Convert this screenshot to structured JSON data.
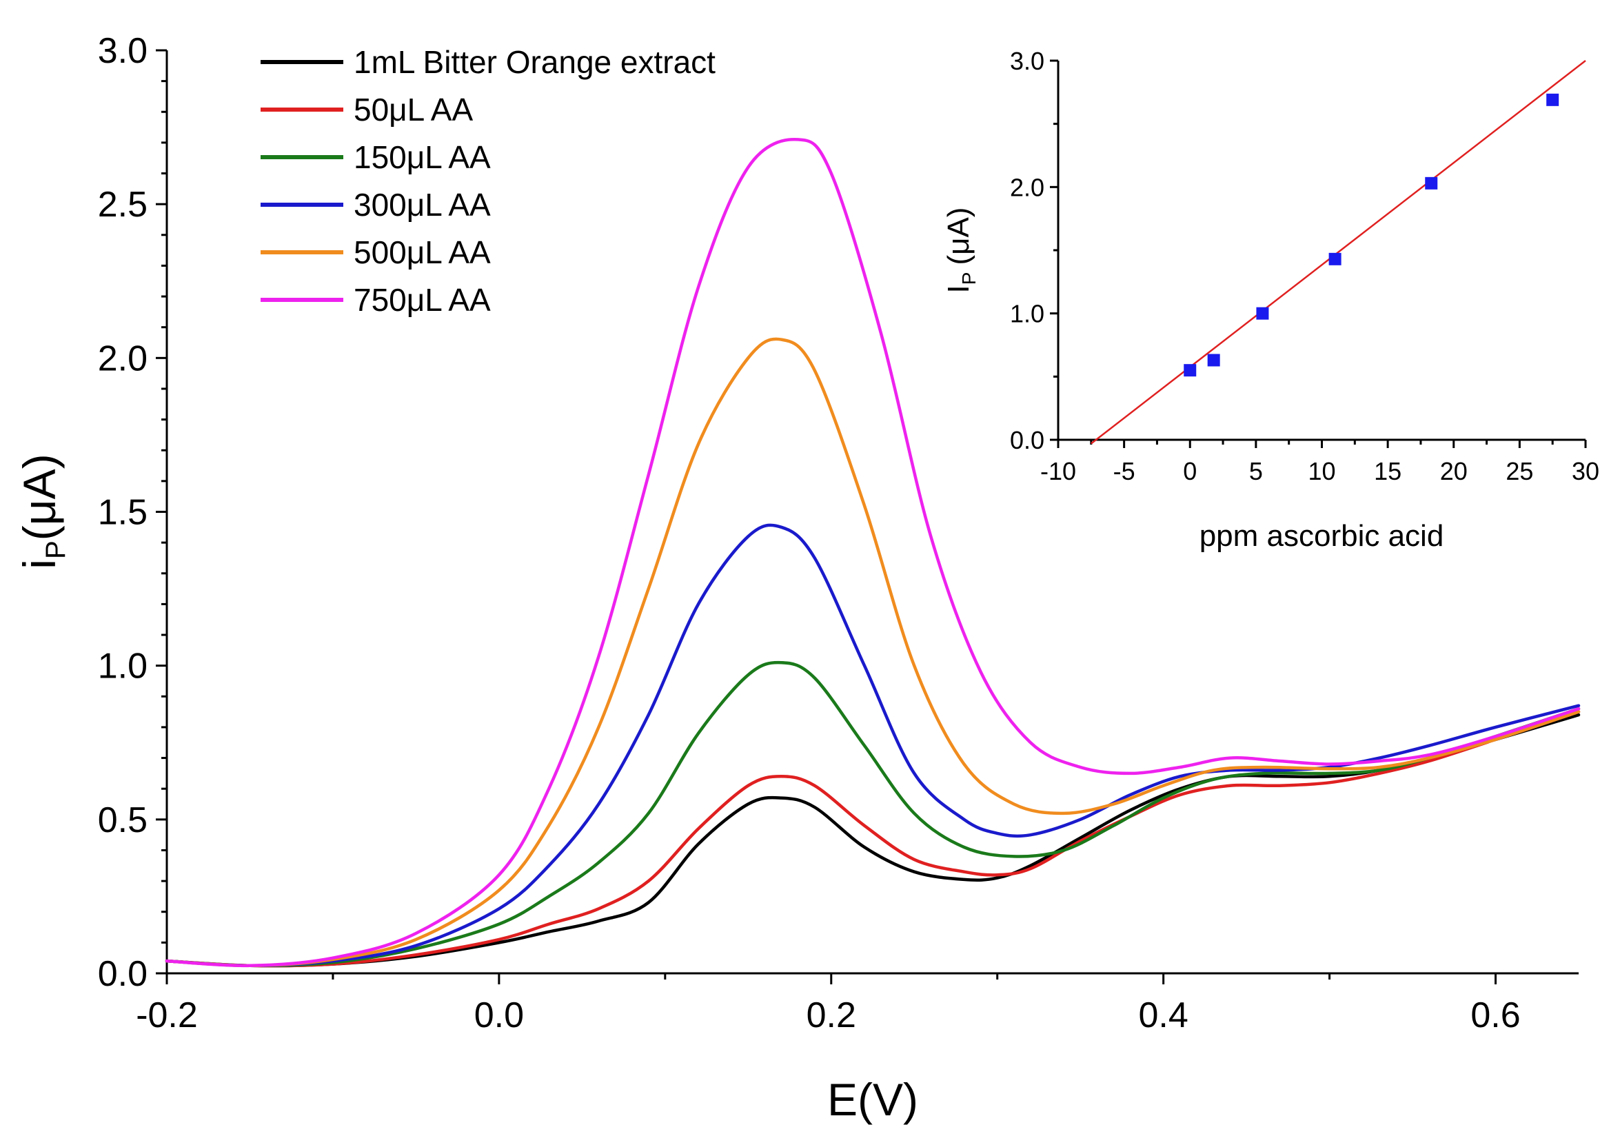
{
  "chart_data": [
    {
      "type": "line",
      "title": "",
      "xlabel": "E(V)",
      "ylabel": "i",
      "ylabel_sub": "P",
      "ylabel_unit": "(μA)",
      "xlim": [
        -0.2,
        0.65
      ],
      "ylim": [
        0.0,
        3.0
      ],
      "x_ticks": [
        -0.2,
        0.0,
        0.2,
        0.4,
        0.6
      ],
      "x_tick_labels": [
        "-0.2",
        "0.0",
        "0.2",
        "0.4",
        "0.6"
      ],
      "y_ticks": [
        0.0,
        0.5,
        1.0,
        1.5,
        2.0,
        2.5,
        3.0
      ],
      "y_tick_labels": [
        "0.0",
        "0.5",
        "1.0",
        "1.5",
        "2.0",
        "2.5",
        "3.0"
      ],
      "grid": false,
      "legend_position": "top-left",
      "series": [
        {
          "name": "1mL Bitter Orange extract",
          "color": "#000000",
          "x": [
            -0.2,
            -0.15,
            -0.1,
            -0.05,
            0.0,
            0.03,
            0.06,
            0.09,
            0.12,
            0.15,
            0.17,
            0.19,
            0.22,
            0.25,
            0.28,
            0.3,
            0.32,
            0.35,
            0.38,
            0.41,
            0.44,
            0.47,
            0.5,
            0.53,
            0.56,
            0.6,
            0.65
          ],
          "y": [
            0.04,
            0.025,
            0.03,
            0.055,
            0.1,
            0.135,
            0.17,
            0.23,
            0.42,
            0.55,
            0.57,
            0.54,
            0.41,
            0.33,
            0.305,
            0.31,
            0.35,
            0.44,
            0.53,
            0.6,
            0.64,
            0.64,
            0.64,
            0.66,
            0.7,
            0.76,
            0.84
          ]
        },
        {
          "name": "50μL AA",
          "color": "#e02020",
          "x": [
            -0.2,
            -0.15,
            -0.1,
            -0.05,
            0.0,
            0.03,
            0.06,
            0.09,
            0.12,
            0.15,
            0.17,
            0.19,
            0.22,
            0.25,
            0.28,
            0.3,
            0.32,
            0.35,
            0.38,
            0.41,
            0.44,
            0.47,
            0.5,
            0.53,
            0.56,
            0.6,
            0.65
          ],
          "y": [
            0.04,
            0.025,
            0.03,
            0.06,
            0.11,
            0.16,
            0.21,
            0.3,
            0.47,
            0.61,
            0.64,
            0.61,
            0.48,
            0.37,
            0.33,
            0.32,
            0.34,
            0.43,
            0.51,
            0.58,
            0.61,
            0.61,
            0.62,
            0.65,
            0.69,
            0.76,
            0.85
          ]
        },
        {
          "name": "150μL AA",
          "color": "#1a7a1a",
          "x": [
            -0.2,
            -0.15,
            -0.1,
            -0.05,
            0.0,
            0.03,
            0.06,
            0.09,
            0.12,
            0.15,
            0.17,
            0.19,
            0.22,
            0.25,
            0.28,
            0.31,
            0.34,
            0.37,
            0.4,
            0.43,
            0.46,
            0.5,
            0.53,
            0.56,
            0.6,
            0.65
          ],
          "y": [
            0.04,
            0.025,
            0.035,
            0.08,
            0.16,
            0.25,
            0.36,
            0.52,
            0.78,
            0.97,
            1.01,
            0.96,
            0.74,
            0.52,
            0.41,
            0.38,
            0.4,
            0.48,
            0.57,
            0.63,
            0.65,
            0.65,
            0.66,
            0.7,
            0.77,
            0.86
          ]
        },
        {
          "name": "300μL AA",
          "color": "#1a1acc",
          "x": [
            -0.2,
            -0.15,
            -0.1,
            -0.05,
            0.0,
            0.03,
            0.06,
            0.09,
            0.12,
            0.15,
            0.17,
            0.19,
            0.22,
            0.25,
            0.28,
            0.3,
            0.32,
            0.35,
            0.38,
            0.41,
            0.44,
            0.47,
            0.5,
            0.53,
            0.56,
            0.6,
            0.65
          ],
          "y": [
            0.04,
            0.025,
            0.04,
            0.09,
            0.21,
            0.35,
            0.55,
            0.84,
            1.2,
            1.42,
            1.45,
            1.35,
            1.0,
            0.65,
            0.5,
            0.455,
            0.45,
            0.5,
            0.58,
            0.64,
            0.66,
            0.66,
            0.67,
            0.7,
            0.74,
            0.8,
            0.87
          ]
        },
        {
          "name": "500μL AA",
          "color": "#f08c1e",
          "x": [
            -0.2,
            -0.15,
            -0.1,
            -0.05,
            0.0,
            0.03,
            0.06,
            0.09,
            0.12,
            0.15,
            0.17,
            0.19,
            0.22,
            0.25,
            0.28,
            0.31,
            0.34,
            0.37,
            0.4,
            0.43,
            0.46,
            0.5,
            0.53,
            0.56,
            0.6,
            0.65
          ],
          "y": [
            0.04,
            0.025,
            0.045,
            0.11,
            0.27,
            0.48,
            0.8,
            1.25,
            1.72,
            2.0,
            2.06,
            1.96,
            1.52,
            1.0,
            0.68,
            0.55,
            0.52,
            0.55,
            0.61,
            0.66,
            0.67,
            0.665,
            0.67,
            0.7,
            0.76,
            0.85
          ]
        },
        {
          "name": "750μL AA",
          "color": "#ee22ee",
          "x": [
            -0.2,
            -0.15,
            -0.1,
            -0.05,
            0.0,
            0.03,
            0.06,
            0.09,
            0.12,
            0.15,
            0.18,
            0.2,
            0.23,
            0.26,
            0.29,
            0.32,
            0.35,
            0.38,
            0.41,
            0.44,
            0.47,
            0.5,
            0.53,
            0.56,
            0.6,
            0.65
          ],
          "y": [
            0.04,
            0.025,
            0.05,
            0.13,
            0.32,
            0.6,
            1.03,
            1.62,
            2.23,
            2.62,
            2.71,
            2.6,
            2.08,
            1.42,
            0.98,
            0.75,
            0.67,
            0.65,
            0.67,
            0.7,
            0.69,
            0.68,
            0.69,
            0.71,
            0.77,
            0.86
          ]
        }
      ]
    },
    {
      "type": "scatter",
      "title": "",
      "xlabel": "ppm ascorbic acid",
      "ylabel": "I",
      "ylabel_sub": "P",
      "ylabel_unit": "(μA)",
      "xlim": [
        -10,
        30
      ],
      "ylim": [
        0.0,
        3.0
      ],
      "x_ticks": [
        -10,
        -5,
        0,
        5,
        10,
        15,
        20,
        25,
        30
      ],
      "x_tick_labels": [
        "-10",
        "-5",
        "0",
        "5",
        "10",
        "15",
        "20",
        "25",
        "30"
      ],
      "y_ticks": [
        0.0,
        1.0,
        2.0,
        3.0
      ],
      "y_tick_labels": [
        "0.0",
        "1.0",
        "2.0",
        "3.0"
      ],
      "grid": false,
      "points": {
        "x": [
          0,
          1.8,
          5.5,
          11.0,
          18.3,
          27.5
        ],
        "y": [
          0.55,
          0.63,
          1.0,
          1.43,
          2.03,
          2.69
        ],
        "color": "#1a1aee"
      },
      "fit_line": {
        "x": [
          -7.5,
          30
        ],
        "y": [
          -0.03,
          3.0
        ],
        "color": "#e02020"
      }
    }
  ]
}
